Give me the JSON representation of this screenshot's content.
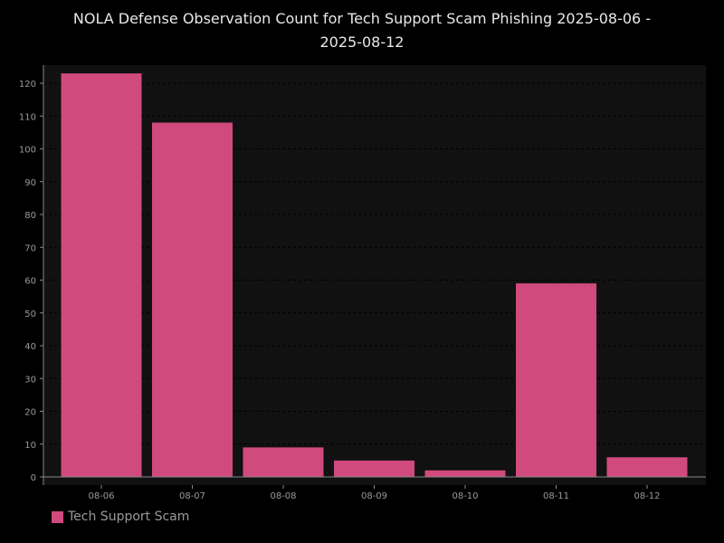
{
  "chart_data": {
    "type": "bar",
    "title_line1": "NOLA Defense Observation Count for Tech Support Scam Phishing 2025-08-06 -",
    "title_line2": "2025-08-12",
    "categories": [
      "08-06",
      "08-07",
      "08-08",
      "08-09",
      "08-10",
      "08-11",
      "08-12"
    ],
    "series": [
      {
        "name": "Tech Support Scam",
        "values": [
          123,
          108,
          9,
          5,
          2,
          59,
          6
        ],
        "color": "#d04a7d"
      }
    ],
    "yticks": [
      0,
      10,
      20,
      30,
      40,
      50,
      60,
      70,
      80,
      90,
      100,
      110,
      120
    ],
    "ylim": [
      0,
      125
    ],
    "grid": true,
    "legend_position": "bottom-left",
    "colors": {
      "background": "#000000",
      "plot_background": "#111111",
      "grid": "#000000",
      "axis": "#888888"
    }
  }
}
